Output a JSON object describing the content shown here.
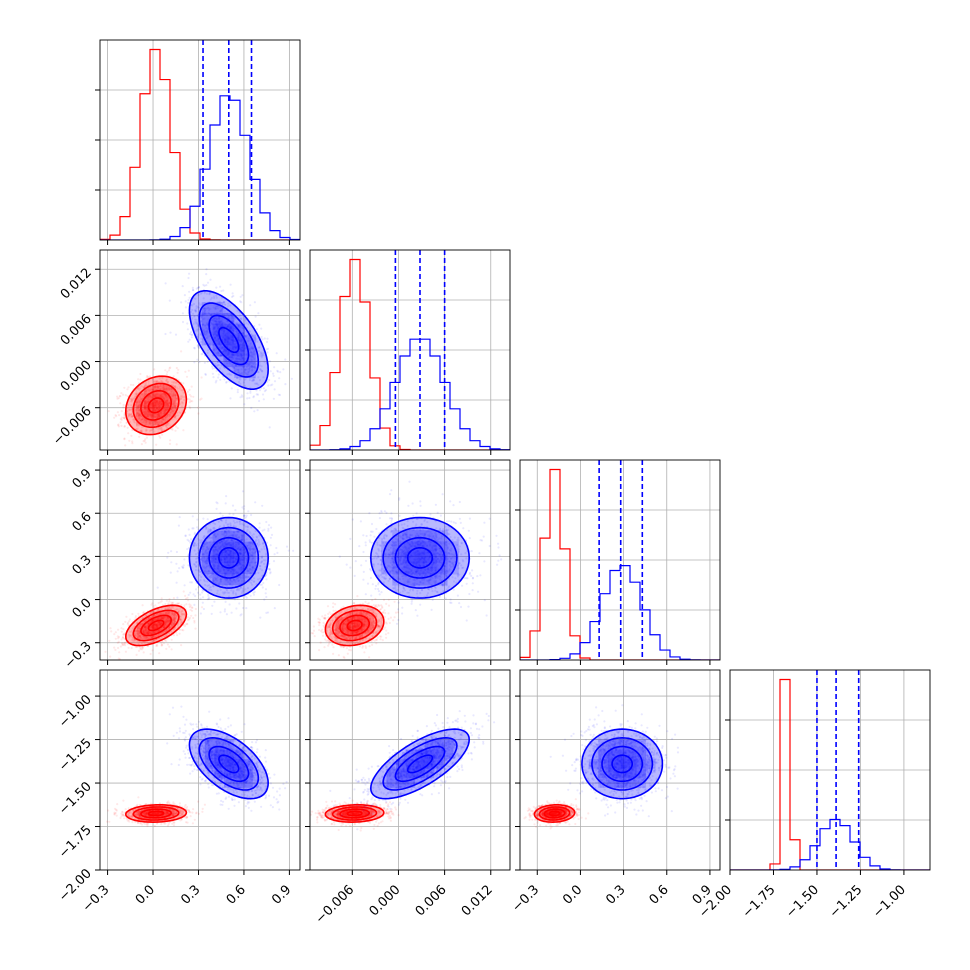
{
  "chart_data": {
    "type": "corner",
    "title": "",
    "series": [
      {
        "name": "",
        "color": "#ff0000",
        "mean": [
          0.02,
          -0.0057,
          -0.18,
          -1.675
        ],
        "std": [
          0.1,
          0.0019,
          0.07,
          0.025
        ],
        "rho": [
          [
            1,
            0.2,
            0.55,
            0.1
          ],
          [
            0.2,
            1,
            0.2,
            0.1
          ],
          [
            0.55,
            0.2,
            1,
            0.1
          ],
          [
            0.1,
            0.1,
            0.1,
            1
          ]
        ]
      },
      {
        "name": "",
        "color": "#0000ff",
        "mean": [
          0.5,
          0.0028,
          0.29,
          -1.39
        ],
        "std": [
          0.13,
          0.0032,
          0.14,
          0.1
        ],
        "rho": [
          [
            1,
            -0.6,
            0.0,
            -0.55
          ],
          [
            -0.6,
            1,
            0.0,
            0.7
          ],
          [
            0.0,
            0.0,
            1,
            0.0
          ],
          [
            -0.55,
            0.7,
            0.0,
            1
          ]
        ]
      }
    ],
    "parameters": [
      {
        "range": [
          -0.35,
          0.97
        ],
        "ticks": [
          -0.3,
          0.0,
          0.3,
          0.6,
          0.9
        ],
        "tick_labels": [
          "−0.3",
          "0.0",
          "0.3",
          "0.6",
          "0.9"
        ]
      },
      {
        "range": [
          -0.0115,
          0.0145
        ],
        "ticks": [
          -0.006,
          0.0,
          0.006,
          0.012
        ],
        "tick_labels": [
          "−0.006",
          "0.000",
          "0.006",
          "0.012"
        ]
      },
      {
        "range": [
          -0.42,
          0.97
        ],
        "ticks": [
          -0.3,
          0.0,
          0.3,
          0.6,
          0.9
        ],
        "tick_labels": [
          "−0.3",
          "0.0",
          "0.3",
          "0.6",
          "0.9"
        ]
      },
      {
        "range": [
          -2.0,
          -0.85
        ],
        "ticks": [
          -2.0,
          -1.75,
          -1.5,
          -1.25,
          -1.0
        ],
        "tick_labels": [
          "−2.00",
          "−1.75",
          "−1.50",
          "−1.25",
          "−1.00"
        ]
      }
    ],
    "quantiles": [
      [
        0.33,
        0.5,
        0.65
      ],
      [
        -0.0004,
        0.0028,
        0.006
      ],
      [
        0.13,
        0.28,
        0.43
      ],
      [
        -1.5,
        -1.39,
        -1.26
      ]
    ],
    "grid": true
  }
}
